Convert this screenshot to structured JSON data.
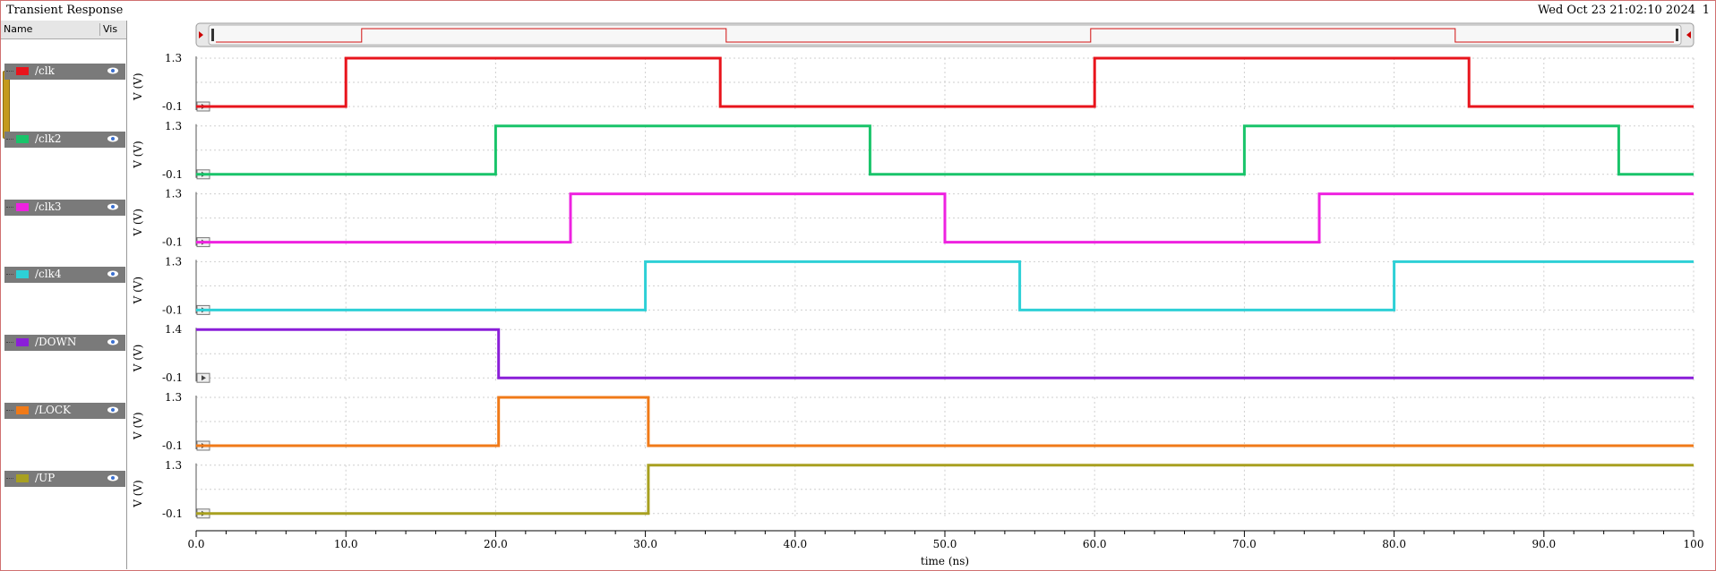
{
  "window": {
    "title": "Transient Response",
    "date": "Wed Oct 23 21:02:10 2024",
    "page": "1"
  },
  "legend": {
    "col_name": "Name",
    "col_vis": "Vis"
  },
  "signals": [
    {
      "name": "/clk",
      "color": "#e8141c",
      "ymax": "1.3",
      "ymin": "-0.1",
      "ylabel": "V (V)"
    },
    {
      "name": "/clk2",
      "color": "#19c46a",
      "ymax": "1.3",
      "ymin": "-0.1",
      "ylabel": "V (V)"
    },
    {
      "name": "/clk3",
      "color": "#ee22e0",
      "ymax": "1.3",
      "ymin": "-0.1",
      "ylabel": "V (V)"
    },
    {
      "name": "/clk4",
      "color": "#2ed0d6",
      "ymax": "1.3",
      "ymin": "-0.1",
      "ylabel": "V (V)"
    },
    {
      "name": "/DOWN",
      "color": "#8a1ed8",
      "ymax": "1.4",
      "ymin": "-0.1",
      "ylabel": "V (V)"
    },
    {
      "name": "/LOCK",
      "color": "#f07a18",
      "ymax": "1.3",
      "ymin": "-0.1",
      "ylabel": "V (V)"
    },
    {
      "name": "/UP",
      "color": "#a8a020",
      "ymax": "1.3",
      "ymin": "-0.1",
      "ylabel": "V (V)"
    }
  ],
  "xaxis": {
    "label": "time (ns)",
    "ticks": [
      "0.0",
      "10.0",
      "20.0",
      "30.0",
      "40.0",
      "50.0",
      "60.0",
      "70.0",
      "80.0",
      "90.0",
      "100"
    ],
    "range": [
      0,
      100
    ]
  },
  "chart_data": {
    "type": "line",
    "xlabel": "time (ns)",
    "xlim": [
      0,
      100
    ],
    "series": [
      {
        "name": "/clk",
        "x": [
          0,
          10,
          10,
          35,
          35,
          60,
          60,
          85,
          85,
          100
        ],
        "y": [
          0,
          0,
          1.2,
          1.2,
          0,
          0,
          1.2,
          1.2,
          0,
          0
        ]
      },
      {
        "name": "/clk2",
        "x": [
          0,
          20,
          20,
          45,
          45,
          70,
          70,
          95,
          95,
          100
        ],
        "y": [
          0,
          0,
          1.2,
          1.2,
          0,
          0,
          1.2,
          1.2,
          0,
          0
        ]
      },
      {
        "name": "/clk3",
        "x": [
          0,
          25,
          25,
          50,
          50,
          75,
          75,
          100
        ],
        "y": [
          0,
          0,
          1.2,
          1.2,
          0,
          0,
          1.2,
          1.2
        ]
      },
      {
        "name": "/clk4",
        "x": [
          0,
          30,
          30,
          55,
          55,
          80,
          80,
          100
        ],
        "y": [
          0,
          0,
          1.2,
          1.2,
          0,
          0,
          1.2,
          1.2
        ]
      },
      {
        "name": "/DOWN",
        "x": [
          0,
          20.2,
          20.2,
          100
        ],
        "y": [
          1.2,
          1.2,
          0,
          0
        ]
      },
      {
        "name": "/LOCK",
        "x": [
          0,
          20.2,
          20.2,
          30.2,
          30.2,
          100
        ],
        "y": [
          0,
          0,
          1.2,
          1.2,
          0,
          0
        ]
      },
      {
        "name": "/UP",
        "x": [
          0,
          30.2,
          30.2,
          100
        ],
        "y": [
          0,
          0,
          1.2,
          1.2
        ]
      }
    ]
  }
}
